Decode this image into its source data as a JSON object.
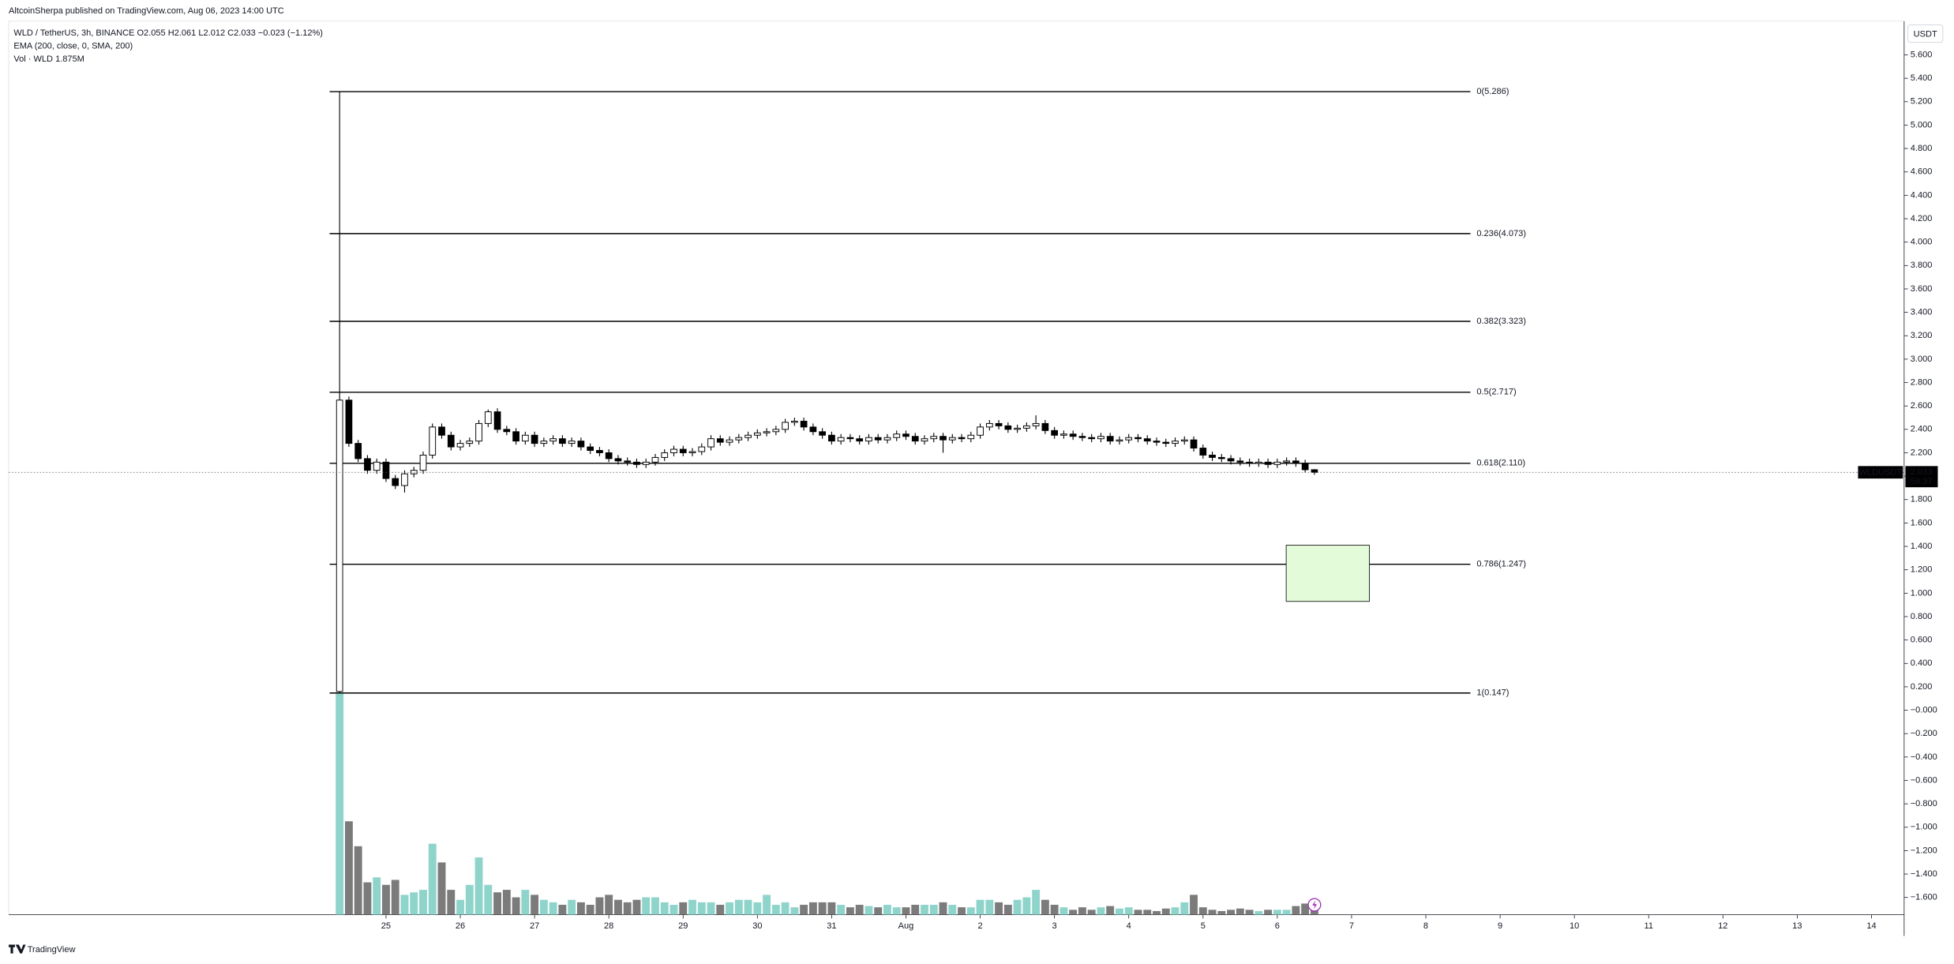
{
  "header": {
    "published": "AltcoinSherpa published on TradingView.com, Aug 06, 2023 14:00 UTC",
    "legend": "WLD / TetherUS, 3h, BINANCE  O2.055 H2.061 L2.012 C2.033 −0.023 (−1.12%)",
    "ema": "EMA (200, close, 0, SMA, 200)",
    "vol": "Vol · WLD  1.875M",
    "currency": "USDT"
  },
  "footer": {
    "brand": "TradingView"
  },
  "chart_data": {
    "type": "candlestick",
    "xlim": [
      -5.08,
      20.44
    ],
    "ylim": [
      -1.748,
      5.888
    ],
    "xticks": [
      {
        "value": 0,
        "label": "25"
      },
      {
        "value": 1,
        "label": "26"
      },
      {
        "value": 2,
        "label": "27"
      },
      {
        "value": 3,
        "label": "28"
      },
      {
        "value": 4,
        "label": "29"
      },
      {
        "value": 5,
        "label": "30"
      },
      {
        "value": 6,
        "label": "31"
      },
      {
        "value": 7,
        "label": "Aug"
      },
      {
        "value": 8,
        "label": "2"
      },
      {
        "value": 9,
        "label": "3"
      },
      {
        "value": 10,
        "label": "4"
      },
      {
        "value": 11,
        "label": "5"
      },
      {
        "value": 12,
        "label": "6"
      },
      {
        "value": 13,
        "label": "7"
      },
      {
        "value": 14,
        "label": "8"
      },
      {
        "value": 15,
        "label": "9"
      },
      {
        "value": 16,
        "label": "10"
      },
      {
        "value": 17,
        "label": "11"
      },
      {
        "value": 18,
        "label": "12"
      },
      {
        "value": 19,
        "label": "13"
      },
      {
        "value": 20,
        "label": "14"
      }
    ],
    "yticks": [
      {
        "value": 5.6,
        "label": "5.600"
      },
      {
        "value": 5.4,
        "label": "5.400"
      },
      {
        "value": 5.2,
        "label": "5.200"
      },
      {
        "value": 5.0,
        "label": "5.000"
      },
      {
        "value": 4.8,
        "label": "4.800"
      },
      {
        "value": 4.6,
        "label": "4.600"
      },
      {
        "value": 4.4,
        "label": "4.400"
      },
      {
        "value": 4.2,
        "label": "4.200"
      },
      {
        "value": 4.0,
        "label": "4.000"
      },
      {
        "value": 3.8,
        "label": "3.800"
      },
      {
        "value": 3.6,
        "label": "3.600"
      },
      {
        "value": 3.4,
        "label": "3.400"
      },
      {
        "value": 3.2,
        "label": "3.200"
      },
      {
        "value": 3.0,
        "label": "3.000"
      },
      {
        "value": 2.8,
        "label": "2.800"
      },
      {
        "value": 2.6,
        "label": "2.600"
      },
      {
        "value": 2.4,
        "label": "2.400"
      },
      {
        "value": 2.2,
        "label": "2.200"
      },
      {
        "value": 2.0,
        "label": "2.000"
      },
      {
        "value": 1.8,
        "label": "1.800"
      },
      {
        "value": 1.6,
        "label": "1.600"
      },
      {
        "value": 1.4,
        "label": "1.400"
      },
      {
        "value": 1.2,
        "label": "1.200"
      },
      {
        "value": 1.0,
        "label": "1.000"
      },
      {
        "value": 0.8,
        "label": "0.800"
      },
      {
        "value": 0.6,
        "label": "0.600"
      },
      {
        "value": 0.4,
        "label": "0.400"
      },
      {
        "value": 0.2,
        "label": "0.200"
      },
      {
        "value": 0,
        "label": "−0.000"
      },
      {
        "value": -0.2,
        "label": "−0.200"
      },
      {
        "value": -0.4,
        "label": "−0.400"
      },
      {
        "value": -0.6,
        "label": "−0.600"
      },
      {
        "value": -0.8,
        "label": "−0.800"
      },
      {
        "value": -1.0,
        "label": "−1.000"
      },
      {
        "value": -1.2,
        "label": "−1.200"
      },
      {
        "value": -1.4,
        "label": "−1.400"
      },
      {
        "value": -1.6,
        "label": "−1.600"
      }
    ],
    "up_color": "#ffffff",
    "down_color": "#000000",
    "volume_up_color": "#8fd4cb",
    "volume_down_color": "#7b7b7b",
    "x": [
      -0.625,
      -0.5,
      -0.375,
      -0.25,
      -0.125,
      0,
      0.125,
      0.25,
      0.375,
      0.5,
      0.625,
      0.75,
      0.875,
      1,
      1.125,
      1.25,
      1.375,
      1.5,
      1.625,
      1.75,
      1.875,
      2,
      2.125,
      2.25,
      2.375,
      2.5,
      2.625,
      2.75,
      2.875,
      3,
      3.125,
      3.25,
      3.375,
      3.5,
      3.625,
      3.75,
      3.875,
      4,
      4.125,
      4.25,
      4.375,
      4.5,
      4.625,
      4.75,
      4.875,
      5,
      5.125,
      5.25,
      5.375,
      5.5,
      5.625,
      5.75,
      5.875,
      6,
      6.125,
      6.25,
      6.375,
      6.5,
      6.625,
      6.75,
      6.875,
      7,
      7.125,
      7.25,
      7.375,
      7.5,
      7.625,
      7.75,
      7.875,
      8,
      8.125,
      8.25,
      8.375,
      8.5,
      8.625,
      8.75,
      8.875,
      9,
      9.125,
      9.25,
      9.375,
      9.5,
      9.625,
      9.75,
      9.875,
      10,
      10.125,
      10.25,
      10.375,
      10.5,
      10.625,
      10.75,
      10.875,
      11,
      11.125,
      11.25,
      11.375,
      11.5,
      11.625,
      11.75,
      11.875,
      12,
      12.125,
      12.25,
      12.375,
      12.5
    ],
    "ohlc": [
      [
        0.16,
        5.286,
        0.147,
        2.65
      ],
      [
        2.65,
        2.68,
        2.25,
        2.28
      ],
      [
        2.28,
        2.31,
        2.12,
        2.15
      ],
      [
        2.15,
        2.18,
        2.02,
        2.05
      ],
      [
        2.05,
        2.15,
        2.02,
        2.12
      ],
      [
        2.12,
        2.15,
        1.95,
        1.98
      ],
      [
        1.98,
        2.01,
        1.89,
        1.92
      ],
      [
        1.92,
        2.05,
        1.86,
        2.02
      ],
      [
        2.02,
        2.08,
        1.99,
        2.05
      ],
      [
        2.05,
        2.21,
        2.02,
        2.18
      ],
      [
        2.18,
        2.45,
        2.15,
        2.42
      ],
      [
        2.42,
        2.45,
        2.32,
        2.35
      ],
      [
        2.35,
        2.38,
        2.22,
        2.25
      ],
      [
        2.25,
        2.31,
        2.22,
        2.28
      ],
      [
        2.28,
        2.33,
        2.25,
        2.3
      ],
      [
        2.3,
        2.48,
        2.27,
        2.45
      ],
      [
        2.45,
        2.57,
        2.42,
        2.55
      ],
      [
        2.55,
        2.58,
        2.37,
        2.4
      ],
      [
        2.4,
        2.43,
        2.35,
        2.38
      ],
      [
        2.38,
        2.41,
        2.27,
        2.3
      ],
      [
        2.3,
        2.38,
        2.27,
        2.35
      ],
      [
        2.35,
        2.38,
        2.25,
        2.28
      ],
      [
        2.28,
        2.33,
        2.25,
        2.3
      ],
      [
        2.3,
        2.35,
        2.27,
        2.32
      ],
      [
        2.32,
        2.35,
        2.25,
        2.28
      ],
      [
        2.28,
        2.33,
        2.25,
        2.3
      ],
      [
        2.3,
        2.33,
        2.22,
        2.25
      ],
      [
        2.25,
        2.28,
        2.19,
        2.22
      ],
      [
        2.22,
        2.25,
        2.17,
        2.2
      ],
      [
        2.2,
        2.23,
        2.12,
        2.15
      ],
      [
        2.15,
        2.18,
        2.1,
        2.13
      ],
      [
        2.13,
        2.16,
        2.09,
        2.12
      ],
      [
        2.12,
        2.15,
        2.07,
        2.1
      ],
      [
        2.1,
        2.15,
        2.07,
        2.12
      ],
      [
        2.12,
        2.19,
        2.09,
        2.16
      ],
      [
        2.16,
        2.23,
        2.13,
        2.2
      ],
      [
        2.2,
        2.26,
        2.17,
        2.23
      ],
      [
        2.23,
        2.26,
        2.17,
        2.2
      ],
      [
        2.2,
        2.24,
        2.17,
        2.21
      ],
      [
        2.21,
        2.28,
        2.18,
        2.25
      ],
      [
        2.25,
        2.35,
        2.22,
        2.32
      ],
      [
        2.32,
        2.35,
        2.26,
        2.29
      ],
      [
        2.29,
        2.34,
        2.26,
        2.31
      ],
      [
        2.31,
        2.36,
        2.28,
        2.33
      ],
      [
        2.33,
        2.38,
        2.3,
        2.35
      ],
      [
        2.35,
        2.4,
        2.32,
        2.37
      ],
      [
        2.37,
        2.41,
        2.34,
        2.38
      ],
      [
        2.38,
        2.43,
        2.35,
        2.4
      ],
      [
        2.4,
        2.49,
        2.37,
        2.46
      ],
      [
        2.46,
        2.5,
        2.43,
        2.47
      ],
      [
        2.47,
        2.5,
        2.39,
        2.42
      ],
      [
        2.42,
        2.45,
        2.35,
        2.38
      ],
      [
        2.38,
        2.41,
        2.32,
        2.35
      ],
      [
        2.35,
        2.38,
        2.27,
        2.3
      ],
      [
        2.3,
        2.36,
        2.27,
        2.33
      ],
      [
        2.33,
        2.36,
        2.29,
        2.32
      ],
      [
        2.32,
        2.35,
        2.27,
        2.3
      ],
      [
        2.3,
        2.36,
        2.27,
        2.33
      ],
      [
        2.33,
        2.36,
        2.28,
        2.31
      ],
      [
        2.31,
        2.36,
        2.28,
        2.33
      ],
      [
        2.33,
        2.39,
        2.3,
        2.36
      ],
      [
        2.36,
        2.39,
        2.31,
        2.34
      ],
      [
        2.34,
        2.37,
        2.27,
        2.3
      ],
      [
        2.3,
        2.35,
        2.27,
        2.32
      ],
      [
        2.32,
        2.37,
        2.29,
        2.34
      ],
      [
        2.34,
        2.37,
        2.2,
        2.31
      ],
      [
        2.31,
        2.36,
        2.28,
        2.33
      ],
      [
        2.33,
        2.36,
        2.29,
        2.32
      ],
      [
        2.32,
        2.38,
        2.29,
        2.35
      ],
      [
        2.35,
        2.45,
        2.32,
        2.42
      ],
      [
        2.42,
        2.48,
        2.39,
        2.45
      ],
      [
        2.45,
        2.48,
        2.4,
        2.43
      ],
      [
        2.43,
        2.46,
        2.37,
        2.4
      ],
      [
        2.4,
        2.44,
        2.37,
        2.41
      ],
      [
        2.41,
        2.46,
        2.38,
        2.43
      ],
      [
        2.43,
        2.52,
        2.4,
        2.45
      ],
      [
        2.45,
        2.48,
        2.36,
        2.39
      ],
      [
        2.39,
        2.42,
        2.32,
        2.35
      ],
      [
        2.35,
        2.39,
        2.32,
        2.36
      ],
      [
        2.36,
        2.39,
        2.31,
        2.34
      ],
      [
        2.34,
        2.37,
        2.3,
        2.33
      ],
      [
        2.33,
        2.36,
        2.29,
        2.32
      ],
      [
        2.32,
        2.37,
        2.29,
        2.34
      ],
      [
        2.34,
        2.37,
        2.27,
        2.3
      ],
      [
        2.3,
        2.34,
        2.27,
        2.31
      ],
      [
        2.31,
        2.36,
        2.28,
        2.33
      ],
      [
        2.33,
        2.36,
        2.29,
        2.32
      ],
      [
        2.32,
        2.35,
        2.27,
        2.3
      ],
      [
        2.3,
        2.33,
        2.26,
        2.29
      ],
      [
        2.29,
        2.32,
        2.25,
        2.28
      ],
      [
        2.28,
        2.33,
        2.25,
        2.3
      ],
      [
        2.3,
        2.34,
        2.27,
        2.31
      ],
      [
        2.31,
        2.34,
        2.21,
        2.24
      ],
      [
        2.24,
        2.27,
        2.15,
        2.18
      ],
      [
        2.18,
        2.21,
        2.13,
        2.16
      ],
      [
        2.16,
        2.19,
        2.12,
        2.15
      ],
      [
        2.15,
        2.18,
        2.1,
        2.13
      ],
      [
        2.13,
        2.16,
        2.09,
        2.12
      ],
      [
        2.12,
        2.15,
        2.08,
        2.11
      ],
      [
        2.11,
        2.15,
        2.08,
        2.12
      ],
      [
        2.12,
        2.15,
        2.07,
        2.1
      ],
      [
        2.1,
        2.15,
        2.07,
        2.12
      ],
      [
        2.12,
        2.16,
        2.09,
        2.13
      ],
      [
        2.13,
        2.16,
        2.08,
        2.11
      ],
      [
        2.11,
        2.14,
        2.03,
        2.055
      ],
      [
        2.055,
        2.061,
        2.012,
        2.033
      ]
    ],
    "volume": [
      35.6,
      15,
      11,
      5.2,
      6,
      4.8,
      5.6,
      3.2,
      3.6,
      4,
      11.4,
      8.4,
      4,
      2.4,
      4.8,
      9.2,
      4.8,
      3.6,
      4,
      2.8,
      4,
      3.2,
      2.4,
      2,
      1.6,
      2.4,
      2,
      1.6,
      2.8,
      3.2,
      2.4,
      2,
      2.4,
      2.8,
      2.8,
      2,
      1.6,
      2,
      2.4,
      2,
      2,
      1.6,
      2,
      2.4,
      2.4,
      2,
      3.2,
      1.6,
      2,
      1.2,
      1.6,
      2,
      2,
      2,
      1.6,
      1.2,
      1.6,
      1.4,
      1.2,
      1.6,
      1.2,
      1.2,
      1.6,
      1.6,
      1.6,
      2,
      1.6,
      1.2,
      1.2,
      2.4,
      2.4,
      2,
      1.6,
      2.4,
      2.8,
      4,
      2.4,
      1.6,
      1.2,
      0.8,
      1.2,
      0.8,
      1.2,
      1.4,
      1,
      1.2,
      0.8,
      0.8,
      0.6,
      1,
      1.2,
      2,
      3.2,
      1.2,
      0.8,
      0.6,
      0.8,
      1,
      0.8,
      0.6,
      0.8,
      0.8,
      0.8,
      1.4,
      1.8,
      1.875
    ],
    "fib_levels": [
      {
        "label": "0(5.286)",
        "value": 5.286
      },
      {
        "label": "0.236(4.073)",
        "value": 4.073
      },
      {
        "label": "0.382(3.323)",
        "value": 3.323
      },
      {
        "label": "0.5(2.717)",
        "value": 2.717
      },
      {
        "label": "0.618(2.110)",
        "value": 2.11
      },
      {
        "label": "0.786(1.247)",
        "value": 1.247
      },
      {
        "label": "1(0.147)",
        "value": 0.147
      }
    ],
    "zone": {
      "x": [
        12.12,
        13.24
      ],
      "top": 1.41,
      "bottom": 0.93,
      "color": "#e3fbd8"
    },
    "price_label": {
      "symbol": "WLDUSDT",
      "value": 2.033,
      "countdown": "59:37"
    }
  }
}
